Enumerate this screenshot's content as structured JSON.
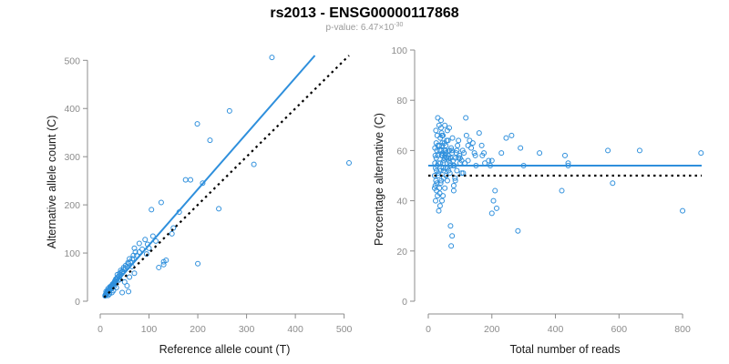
{
  "header": {
    "title": "rs2013 - ENSG00000117868",
    "pvalue_prefix": "p-value: 6.47×10",
    "pvalue_exponent": "-30"
  },
  "colors": {
    "points": "#2e8fdc",
    "fit_line": "#2e8fdc",
    "reference_line": "#000000",
    "axes": "#8c8c8c"
  },
  "chart_data": [
    {
      "type": "scatter",
      "title": "",
      "xlabel": "Reference allele count (T)",
      "ylabel": "Alternative allele count (C)",
      "xlim": [
        0,
        510
      ],
      "ylim": [
        0,
        510
      ],
      "xticks": [
        0,
        100,
        200,
        300,
        400,
        500
      ],
      "yticks": [
        0,
        100,
        200,
        300,
        400,
        500
      ],
      "grid": false,
      "fit_line": {
        "from": [
          8,
          10
        ],
        "to": [
          440,
          510
        ]
      },
      "reference_line": {
        "from": [
          8,
          8
        ],
        "to": [
          510,
          510
        ]
      },
      "x": [
        352,
        510,
        265,
        199,
        225,
        315,
        243,
        210,
        185,
        175,
        200,
        150,
        125,
        147,
        162,
        130,
        105,
        108,
        114,
        97,
        92,
        86,
        80,
        75,
        70,
        66,
        62,
        58,
        55,
        52,
        48,
        45,
        42,
        38,
        35,
        33,
        30,
        28,
        26,
        25,
        23,
        22,
        21,
        20,
        19,
        18,
        17,
        16,
        15,
        14,
        13,
        12,
        12,
        11,
        10,
        50,
        55,
        35,
        60,
        70,
        65,
        40,
        45,
        30,
        28,
        25,
        22,
        20,
        18,
        16,
        15,
        14,
        13,
        12,
        11,
        10,
        100,
        120,
        130,
        135,
        95,
        80,
        72,
        68,
        60,
        57,
        52,
        48,
        42,
        40,
        38,
        36,
        32,
        30,
        28,
        26,
        24,
        22,
        20,
        18,
        17,
        15,
        14,
        13,
        12,
        11,
        45,
        58,
        33,
        27,
        24,
        19,
        16
      ],
      "y": [
        506,
        287,
        395,
        368,
        334,
        284,
        192,
        245,
        252,
        252,
        78,
        152,
        205,
        140,
        185,
        76,
        190,
        135,
        125,
        118,
        128,
        108,
        102,
        95,
        110,
        88,
        82,
        78,
        72,
        68,
        66,
        60,
        55,
        52,
        48,
        45,
        42,
        38,
        36,
        34,
        32,
        30,
        28,
        26,
        24,
        22,
        20,
        19,
        18,
        17,
        16,
        15,
        13,
        12,
        11,
        40,
        32,
        55,
        50,
        58,
        72,
        46,
        62,
        40,
        30,
        35,
        28,
        30,
        22,
        26,
        20,
        18,
        15,
        20,
        14,
        12,
        110,
        70,
        82,
        85,
        98,
        120,
        102,
        95,
        88,
        80,
        74,
        70,
        64,
        58,
        44,
        50,
        46,
        38,
        36,
        32,
        28,
        25,
        26,
        24,
        19,
        22,
        16,
        17,
        14,
        13,
        18,
        20,
        28,
        22,
        18,
        15,
        12
      ]
    },
    {
      "type": "scatter",
      "title": "",
      "xlabel": "Total number of reads",
      "ylabel": "Percentage alternative (C)",
      "xlim": [
        0,
        860
      ],
      "ylim": [
        0,
        100
      ],
      "xticks": [
        0,
        200,
        400,
        600,
        800
      ],
      "yticks": [
        0,
        20,
        40,
        60,
        80,
        100
      ],
      "grid": false,
      "fit_line": {
        "y": 54
      },
      "reference_line": {
        "y": 50
      },
      "x": [
        858,
        800,
        665,
        580,
        565,
        440,
        430,
        420,
        350,
        290,
        282,
        262,
        245,
        230,
        215,
        205,
        200,
        195,
        190,
        178,
        175,
        170,
        168,
        160,
        150,
        148,
        140,
        135,
        130,
        125,
        120,
        118,
        112,
        108,
        105,
        100,
        98,
        95,
        92,
        90,
        88,
        85,
        82,
        80,
        78,
        75,
        72,
        70,
        68,
        66,
        64,
        62,
        60,
        58,
        56,
        55,
        54,
        52,
        50,
        48,
        47,
        46,
        45,
        44,
        43,
        42,
        41,
        40,
        39,
        38,
        37,
        36,
        35,
        34,
        33,
        32,
        31,
        30,
        30,
        29,
        28,
        28,
        27,
        27,
        26,
        26,
        25,
        25,
        24,
        24,
        23,
        23,
        22,
        22,
        21,
        21,
        20,
        20,
        35,
        38,
        42,
        45,
        48,
        50,
        55,
        60,
        65,
        70,
        75,
        85,
        95,
        110,
        125,
        145,
        60,
        62,
        66,
        70,
        72,
        78,
        80,
        90,
        100,
        105,
        115,
        200,
        210,
        300,
        440,
        40,
        44,
        46,
        52,
        56,
        58,
        64,
        68,
        74,
        76,
        84,
        30,
        32,
        36,
        39,
        41,
        43,
        47,
        49,
        51,
        53
      ],
      "y": [
        59,
        36,
        60,
        47,
        60,
        54,
        58,
        44,
        59,
        61,
        28,
        66,
        65,
        59,
        37,
        40,
        35,
        54,
        56,
        55,
        59,
        58,
        62,
        67,
        54,
        58,
        63,
        61,
        64,
        62,
        66,
        73,
        59,
        60,
        56,
        55,
        58,
        64,
        62,
        52,
        59,
        57,
        54,
        44,
        56,
        26,
        22,
        30,
        55,
        60,
        52,
        58,
        48,
        57,
        50,
        62,
        53,
        45,
        60,
        49,
        55,
        42,
        58,
        62,
        40,
        67,
        48,
        72,
        52,
        65,
        38,
        60,
        45,
        70,
        36,
        55,
        50,
        58,
        62,
        42,
        54,
        66,
        47,
        60,
        52,
        44,
        57,
        63,
        48,
        68,
        53,
        40,
        58,
        46,
        61,
        55,
        50,
        45,
        62,
        55,
        58,
        59,
        52,
        57,
        60,
        53,
        56,
        54,
        59,
        48,
        57,
        51,
        56,
        59,
        68,
        64,
        69,
        57,
        61,
        54,
        46,
        60,
        57,
        51,
        55,
        56,
        44,
        54,
        55,
        69,
        63,
        66,
        70,
        59,
        64,
        57,
        51,
        60,
        65,
        49,
        73,
        51,
        43,
        47,
        60,
        66,
        53,
        56,
        63,
        58
      ]
    }
  ]
}
